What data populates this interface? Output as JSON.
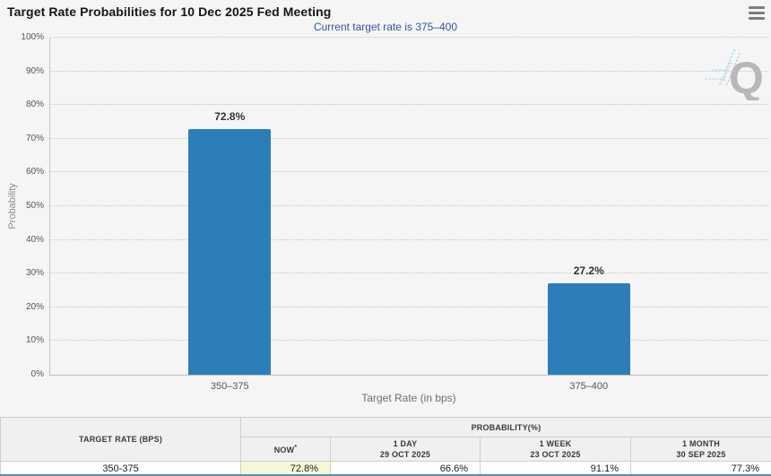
{
  "header": {
    "title": "Target Rate Probabilities for 10 Dec 2025 Fed Meeting"
  },
  "subtitle": "Current target rate is 375–400",
  "chart_data": {
    "type": "bar",
    "categories": [
      "350–375",
      "375–400"
    ],
    "values": [
      72.8,
      27.2
    ],
    "value_labels": [
      "72.8%",
      "27.2%"
    ],
    "title": "",
    "xlabel": "Target Rate (in bps)",
    "ylabel": "Probability",
    "ylim": [
      0,
      100
    ],
    "ytick_step": 10,
    "ytick_suffix": "%",
    "grid": "horizontal-dotted",
    "legend": "none",
    "bar_color": "#2d7eb8"
  },
  "watermark": {
    "letter": "Q"
  },
  "table": {
    "col1_header": "TARGET RATE (BPS)",
    "group_header": "PROBABILITY(%)",
    "sub_headers": [
      {
        "line1": "NOW",
        "sup": "*",
        "line2": ""
      },
      {
        "line1": "1 DAY",
        "line2": "29 OCT 2025"
      },
      {
        "line1": "1 WEEK",
        "line2": "23 OCT 2025"
      },
      {
        "line1": "1 MONTH",
        "line2": "30 SEP 2025"
      }
    ],
    "rows": [
      {
        "rate": "350-375",
        "now": "72.8%",
        "one_day": "66.6%",
        "one_week": "91.1%",
        "one_month": "77.3%"
      }
    ]
  },
  "colors": {
    "bar": "#2d7eb8",
    "now_highlight": "#f6f6d9",
    "subtitle_text": "#36559c"
  }
}
